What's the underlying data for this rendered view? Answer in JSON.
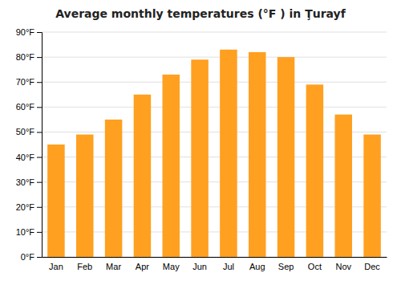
{
  "chart_data": {
    "type": "bar",
    "title": "Average monthly temperatures (°F ) in Ţurayf",
    "categories": [
      "Jan",
      "Feb",
      "Mar",
      "Apr",
      "May",
      "Jun",
      "Jul",
      "Aug",
      "Sep",
      "Oct",
      "Nov",
      "Dec"
    ],
    "values": [
      45,
      49,
      55,
      65,
      73,
      79,
      83,
      82,
      80,
      69,
      57,
      49
    ],
    "color": "#FFA020",
    "ylim": [
      0,
      90
    ],
    "yticks": [
      {
        "value": 0,
        "label": "0°F"
      },
      {
        "value": 10,
        "label": "10°F"
      },
      {
        "value": 20,
        "label": "20°F"
      },
      {
        "value": 30,
        "label": "30°F"
      },
      {
        "value": 40,
        "label": "40°F"
      },
      {
        "value": 50,
        "label": "50°F"
      },
      {
        "value": 60,
        "label": "60°F"
      },
      {
        "value": 70,
        "label": "70°F"
      },
      {
        "value": 80,
        "label": "80°F"
      },
      {
        "value": 90,
        "label": "90°F"
      }
    ],
    "grid": true
  }
}
